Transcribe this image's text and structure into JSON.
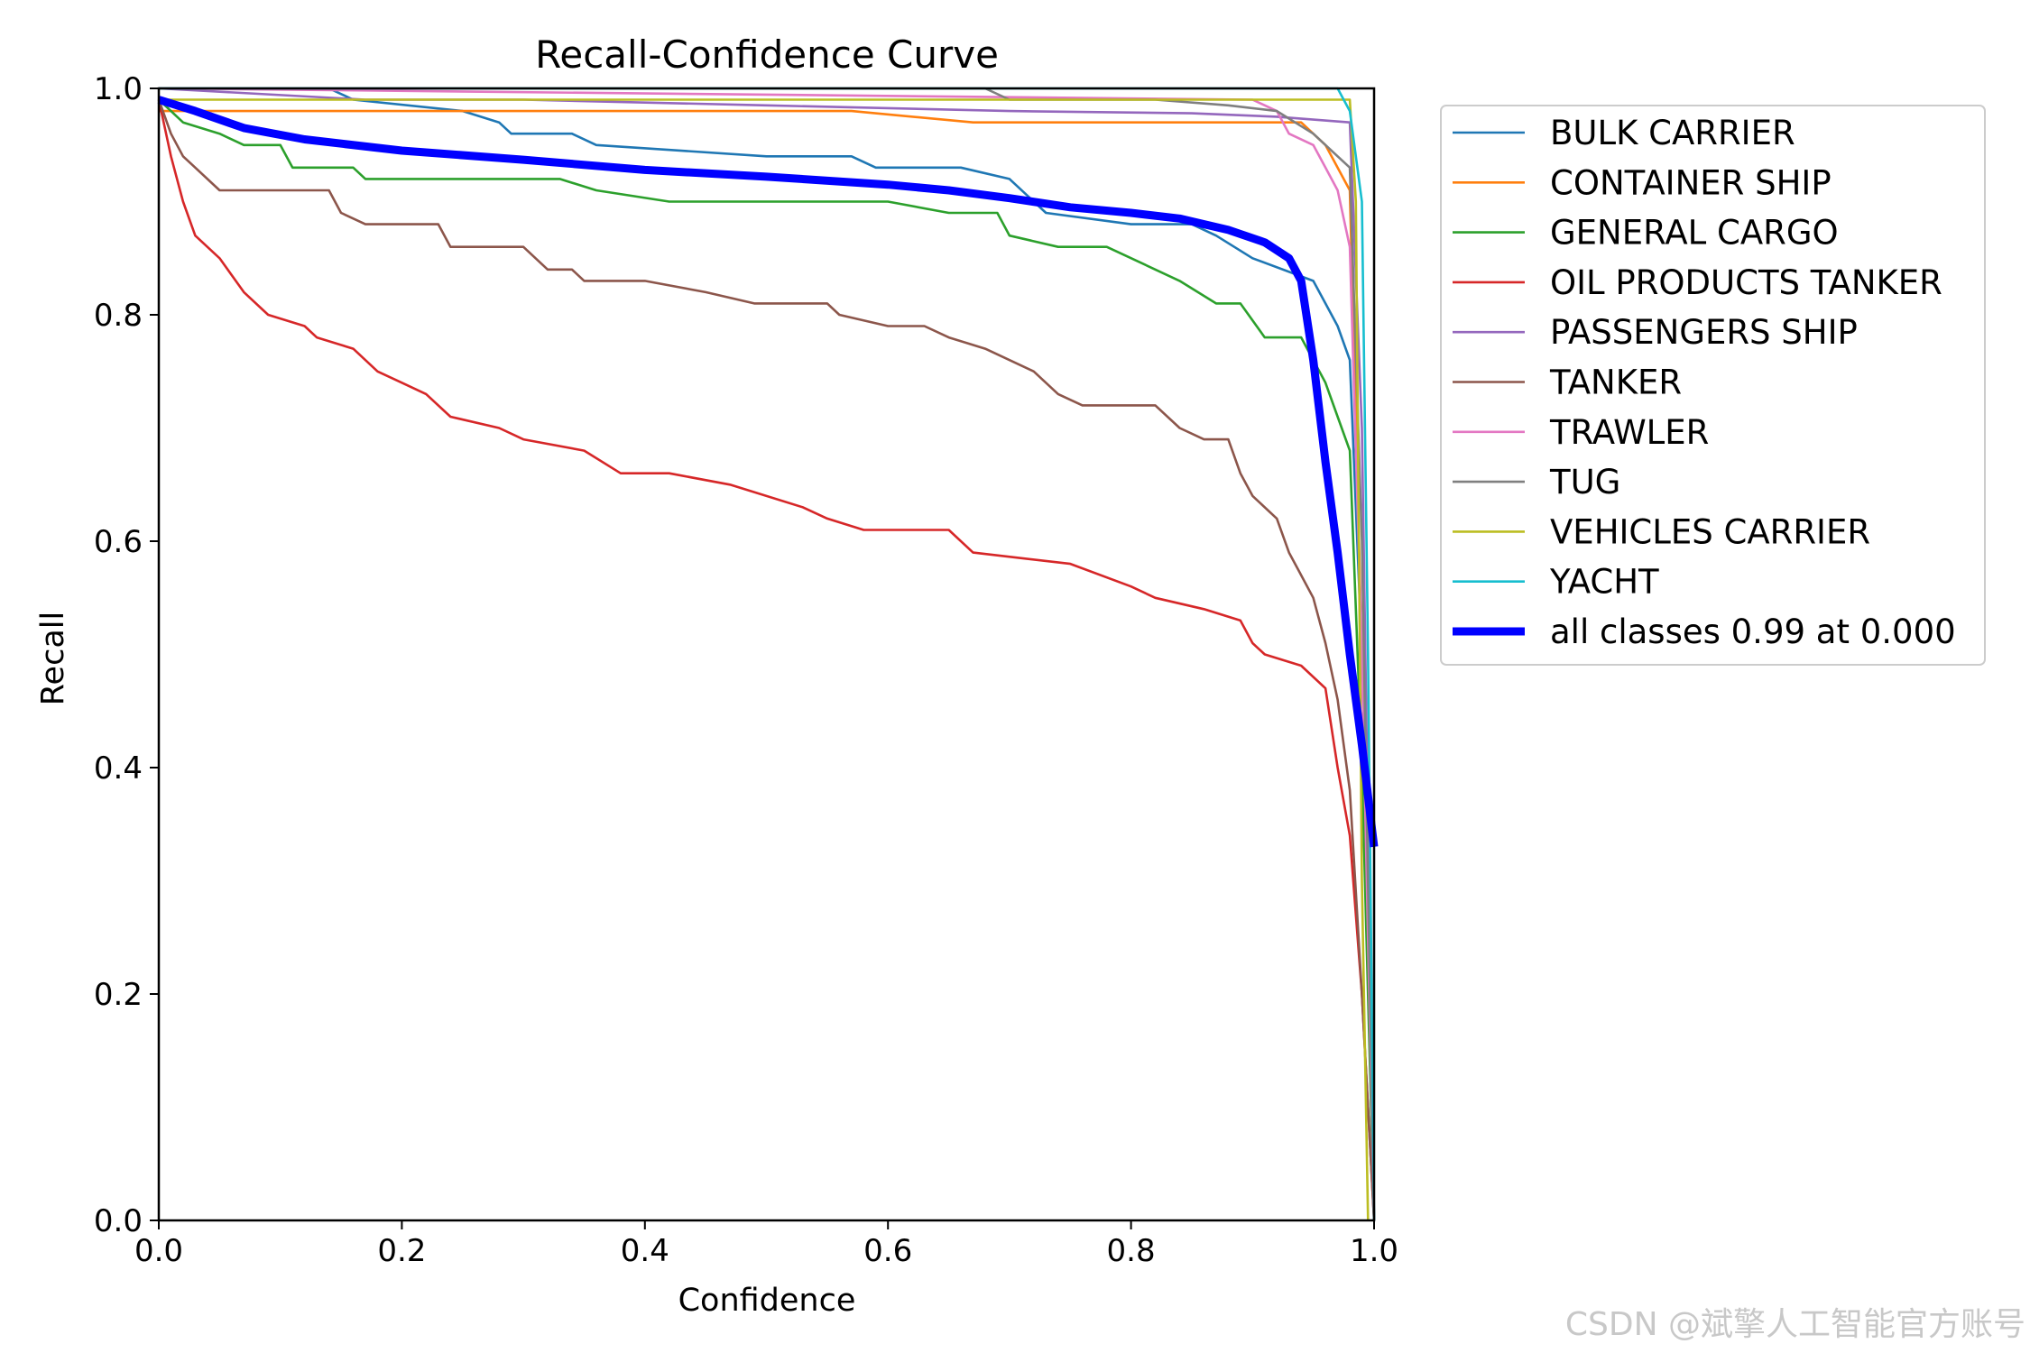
{
  "watermark": "CSDN @斌擎人工智能官方账号",
  "chart_data": {
    "type": "line",
    "title": "Recall-Confidence Curve",
    "xlabel": "Confidence",
    "ylabel": "Recall",
    "xlim": [
      0,
      1
    ],
    "ylim": [
      0,
      1
    ],
    "xticks": [
      "0.0",
      "0.2",
      "0.4",
      "0.6",
      "0.8",
      "1.0"
    ],
    "yticks": [
      "0.0",
      "0.2",
      "0.4",
      "0.6",
      "0.8",
      "1.0"
    ],
    "legend_position": "outside-right-top",
    "grid": false,
    "series": [
      {
        "name": "BULK CARRIER",
        "color": "#1f77b4",
        "points": [
          [
            0,
            1.0
          ],
          [
            0.14,
            1.0
          ],
          [
            0.16,
            0.99
          ],
          [
            0.25,
            0.98
          ],
          [
            0.28,
            0.97
          ],
          [
            0.29,
            0.96
          ],
          [
            0.34,
            0.96
          ],
          [
            0.36,
            0.95
          ],
          [
            0.5,
            0.94
          ],
          [
            0.57,
            0.94
          ],
          [
            0.59,
            0.93
          ],
          [
            0.66,
            0.93
          ],
          [
            0.7,
            0.92
          ],
          [
            0.73,
            0.89
          ],
          [
            0.8,
            0.88
          ],
          [
            0.85,
            0.88
          ],
          [
            0.87,
            0.87
          ],
          [
            0.9,
            0.85
          ],
          [
            0.95,
            0.83
          ],
          [
            0.96,
            0.81
          ],
          [
            0.97,
            0.79
          ],
          [
            0.98,
            0.76
          ],
          [
            0.99,
            0.5
          ],
          [
            1.0,
            0.0
          ]
        ]
      },
      {
        "name": "CONTAINER SHIP",
        "color": "#ff7f0e",
        "points": [
          [
            0,
            0.98
          ],
          [
            0.57,
            0.98
          ],
          [
            0.67,
            0.97
          ],
          [
            0.94,
            0.97
          ],
          [
            0.96,
            0.95
          ],
          [
            0.98,
            0.91
          ],
          [
            0.99,
            0.5
          ],
          [
            1.0,
            0.0
          ]
        ]
      },
      {
        "name": "GENERAL CARGO",
        "color": "#2ca02c",
        "points": [
          [
            0,
            0.99
          ],
          [
            0.01,
            0.98
          ],
          [
            0.02,
            0.97
          ],
          [
            0.05,
            0.96
          ],
          [
            0.07,
            0.95
          ],
          [
            0.1,
            0.95
          ],
          [
            0.11,
            0.93
          ],
          [
            0.16,
            0.93
          ],
          [
            0.17,
            0.92
          ],
          [
            0.33,
            0.92
          ],
          [
            0.36,
            0.91
          ],
          [
            0.42,
            0.9
          ],
          [
            0.6,
            0.9
          ],
          [
            0.65,
            0.89
          ],
          [
            0.69,
            0.89
          ],
          [
            0.7,
            0.87
          ],
          [
            0.74,
            0.86
          ],
          [
            0.78,
            0.86
          ],
          [
            0.84,
            0.83
          ],
          [
            0.87,
            0.81
          ],
          [
            0.89,
            0.81
          ],
          [
            0.91,
            0.78
          ],
          [
            0.94,
            0.78
          ],
          [
            0.95,
            0.76
          ],
          [
            0.96,
            0.74
          ],
          [
            0.97,
            0.71
          ],
          [
            0.98,
            0.68
          ],
          [
            0.99,
            0.4
          ],
          [
            1.0,
            0.0
          ]
        ]
      },
      {
        "name": "OIL PRODUCTS TANKER",
        "color": "#d62728",
        "points": [
          [
            0,
            0.99
          ],
          [
            0.01,
            0.94
          ],
          [
            0.02,
            0.9
          ],
          [
            0.03,
            0.87
          ],
          [
            0.05,
            0.85
          ],
          [
            0.07,
            0.82
          ],
          [
            0.09,
            0.8
          ],
          [
            0.12,
            0.79
          ],
          [
            0.13,
            0.78
          ],
          [
            0.16,
            0.77
          ],
          [
            0.18,
            0.75
          ],
          [
            0.2,
            0.74
          ],
          [
            0.22,
            0.73
          ],
          [
            0.24,
            0.71
          ],
          [
            0.28,
            0.7
          ],
          [
            0.3,
            0.69
          ],
          [
            0.35,
            0.68
          ],
          [
            0.38,
            0.66
          ],
          [
            0.42,
            0.66
          ],
          [
            0.47,
            0.65
          ],
          [
            0.53,
            0.63
          ],
          [
            0.55,
            0.62
          ],
          [
            0.58,
            0.61
          ],
          [
            0.65,
            0.61
          ],
          [
            0.67,
            0.59
          ],
          [
            0.75,
            0.58
          ],
          [
            0.8,
            0.56
          ],
          [
            0.82,
            0.55
          ],
          [
            0.86,
            0.54
          ],
          [
            0.89,
            0.53
          ],
          [
            0.9,
            0.51
          ],
          [
            0.91,
            0.5
          ],
          [
            0.94,
            0.49
          ],
          [
            0.96,
            0.47
          ],
          [
            0.97,
            0.4
          ],
          [
            0.98,
            0.34
          ],
          [
            0.99,
            0.2
          ],
          [
            1.0,
            0.0
          ]
        ]
      },
      {
        "name": "PASSENGERS SHIP",
        "color": "#9467bd",
        "points": [
          [
            0,
            1.0
          ],
          [
            0.17,
            0.99
          ],
          [
            0.3,
            0.99
          ],
          [
            0.5,
            0.985
          ],
          [
            0.7,
            0.98
          ],
          [
            0.85,
            0.978
          ],
          [
            0.92,
            0.975
          ],
          [
            0.98,
            0.97
          ],
          [
            0.99,
            0.7
          ],
          [
            1.0,
            0.0
          ]
        ]
      },
      {
        "name": "TANKER",
        "color": "#8c564b",
        "points": [
          [
            0,
            0.99
          ],
          [
            0.01,
            0.96
          ],
          [
            0.02,
            0.94
          ],
          [
            0.03,
            0.93
          ],
          [
            0.05,
            0.91
          ],
          [
            0.14,
            0.91
          ],
          [
            0.15,
            0.89
          ],
          [
            0.17,
            0.88
          ],
          [
            0.23,
            0.88
          ],
          [
            0.24,
            0.86
          ],
          [
            0.3,
            0.86
          ],
          [
            0.31,
            0.85
          ],
          [
            0.32,
            0.84
          ],
          [
            0.34,
            0.84
          ],
          [
            0.35,
            0.83
          ],
          [
            0.4,
            0.83
          ],
          [
            0.45,
            0.82
          ],
          [
            0.49,
            0.81
          ],
          [
            0.55,
            0.81
          ],
          [
            0.56,
            0.8
          ],
          [
            0.6,
            0.79
          ],
          [
            0.63,
            0.79
          ],
          [
            0.65,
            0.78
          ],
          [
            0.68,
            0.77
          ],
          [
            0.72,
            0.75
          ],
          [
            0.74,
            0.73
          ],
          [
            0.76,
            0.72
          ],
          [
            0.82,
            0.72
          ],
          [
            0.84,
            0.7
          ],
          [
            0.86,
            0.69
          ],
          [
            0.88,
            0.69
          ],
          [
            0.89,
            0.66
          ],
          [
            0.9,
            0.64
          ],
          [
            0.92,
            0.62
          ],
          [
            0.93,
            0.59
          ],
          [
            0.94,
            0.57
          ],
          [
            0.95,
            0.55
          ],
          [
            0.96,
            0.51
          ],
          [
            0.97,
            0.46
          ],
          [
            0.98,
            0.38
          ],
          [
            0.99,
            0.2
          ],
          [
            1.0,
            0.0
          ]
        ]
      },
      {
        "name": "TRAWLER",
        "color": "#e377c2",
        "points": [
          [
            0,
            1.0
          ],
          [
            0.9,
            0.99
          ],
          [
            0.92,
            0.98
          ],
          [
            0.93,
            0.96
          ],
          [
            0.95,
            0.95
          ],
          [
            0.96,
            0.93
          ],
          [
            0.97,
            0.91
          ],
          [
            0.98,
            0.86
          ],
          [
            0.99,
            0.5
          ],
          [
            1.0,
            0.0
          ]
        ]
      },
      {
        "name": "TUG",
        "color": "#7f7f7f",
        "points": [
          [
            0,
            1.0
          ],
          [
            0.68,
            1.0
          ],
          [
            0.7,
            0.99
          ],
          [
            0.82,
            0.99
          ],
          [
            0.88,
            0.985
          ],
          [
            0.92,
            0.98
          ],
          [
            0.95,
            0.96
          ],
          [
            0.97,
            0.94
          ],
          [
            0.98,
            0.93
          ],
          [
            0.99,
            0.6
          ],
          [
            1.0,
            0.0
          ]
        ]
      },
      {
        "name": "VEHICLES CARRIER",
        "color": "#bcbd22",
        "points": [
          [
            0,
            0.99
          ],
          [
            0.98,
            0.99
          ],
          [
            0.985,
            0.9
          ],
          [
            0.99,
            0.3
          ],
          [
            0.995,
            0.0
          ]
        ]
      },
      {
        "name": "YACHT",
        "color": "#17becf",
        "points": [
          [
            0,
            1.0
          ],
          [
            0.97,
            1.0
          ],
          [
            0.98,
            0.98
          ],
          [
            0.99,
            0.9
          ],
          [
            0.995,
            0.5
          ],
          [
            1.0,
            0.0
          ]
        ]
      },
      {
        "name": "all classes 0.99 at 0.000",
        "color": "#0000ff",
        "bold": true,
        "points": [
          [
            0,
            0.99
          ],
          [
            0.03,
            0.98
          ],
          [
            0.07,
            0.965
          ],
          [
            0.12,
            0.955
          ],
          [
            0.2,
            0.945
          ],
          [
            0.3,
            0.937
          ],
          [
            0.4,
            0.928
          ],
          [
            0.5,
            0.922
          ],
          [
            0.6,
            0.915
          ],
          [
            0.65,
            0.91
          ],
          [
            0.7,
            0.903
          ],
          [
            0.75,
            0.895
          ],
          [
            0.8,
            0.89
          ],
          [
            0.84,
            0.885
          ],
          [
            0.88,
            0.875
          ],
          [
            0.91,
            0.864
          ],
          [
            0.93,
            0.85
          ],
          [
            0.94,
            0.83
          ],
          [
            0.95,
            0.76
          ],
          [
            0.96,
            0.67
          ],
          [
            0.97,
            0.59
          ],
          [
            0.98,
            0.5
          ],
          [
            0.99,
            0.42
          ],
          [
            1.0,
            0.33
          ]
        ]
      }
    ]
  }
}
